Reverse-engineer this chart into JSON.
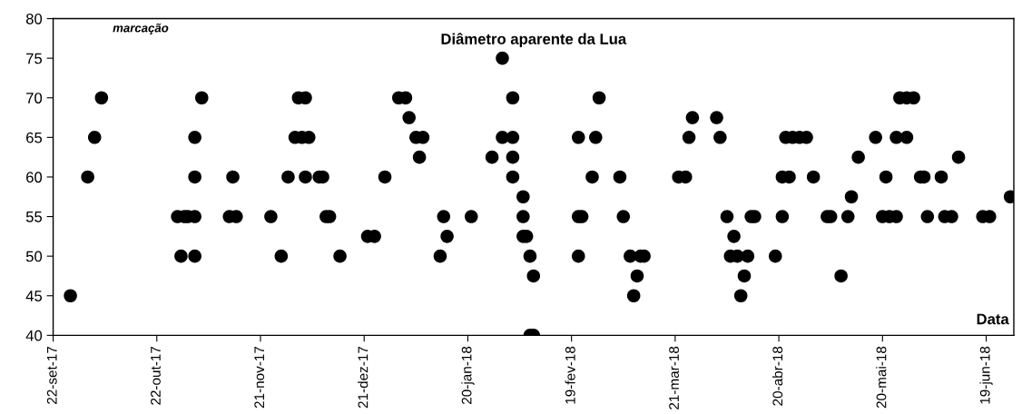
{
  "chart_data": {
    "type": "scatter",
    "title": "Diâmetro aparente da Lua",
    "xlabel": "Data",
    "ylabel": "marcação",
    "x": [
      "2017-09-27",
      "2017-10-02",
      "2017-10-04",
      "2017-10-06",
      "2017-10-28",
      "2017-10-29",
      "2017-10-30",
      "2017-10-31",
      "2017-11-02",
      "2017-11-02",
      "2017-11-02",
      "2017-11-02",
      "2017-11-04",
      "2017-11-12",
      "2017-11-13",
      "2017-11-14",
      "2017-11-24",
      "2017-11-27",
      "2017-11-29",
      "2017-12-01",
      "2017-12-02",
      "2017-12-03",
      "2017-12-04",
      "2017-12-04",
      "2017-12-05",
      "2017-12-08",
      "2017-12-09",
      "2017-12-10",
      "2017-12-11",
      "2017-12-14",
      "2017-12-22",
      "2017-12-24",
      "2017-12-27",
      "2017-12-31",
      "2018-01-02",
      "2018-01-03",
      "2018-01-05",
      "2018-01-06",
      "2018-01-07",
      "2018-01-12",
      "2018-01-13",
      "2018-01-14",
      "2018-01-21",
      "2018-01-27",
      "2018-01-30",
      "2018-01-30",
      "2018-02-02",
      "2018-02-02",
      "2018-02-02",
      "2018-02-02",
      "2018-02-05",
      "2018-02-05",
      "2018-02-05",
      "2018-02-06",
      "2018-02-07",
      "2018-02-08",
      "2018-02-07",
      "2018-02-08",
      "2018-02-21",
      "2018-02-22",
      "2018-02-21",
      "2018-02-21",
      "2018-02-25",
      "2018-02-26",
      "2018-02-27",
      "2018-03-05",
      "2018-03-06",
      "2018-03-08",
      "2018-03-10",
      "2018-03-09",
      "2018-03-11",
      "2018-03-12",
      "2018-03-22",
      "2018-03-24",
      "2018-03-25",
      "2018-03-26",
      "2018-04-02",
      "2018-04-03",
      "2018-04-05",
      "2018-04-07",
      "2018-04-06",
      "2018-04-08",
      "2018-04-11",
      "2018-04-09",
      "2018-04-10",
      "2018-04-12",
      "2018-04-13",
      "2018-04-19",
      "2018-04-21",
      "2018-04-21",
      "2018-04-23",
      "2018-04-22",
      "2018-04-24",
      "2018-04-26",
      "2018-04-28",
      "2018-04-30",
      "2018-05-04",
      "2018-05-05",
      "2018-05-08",
      "2018-05-10",
      "2018-05-11",
      "2018-05-13",
      "2018-05-18",
      "2018-05-20",
      "2018-05-22",
      "2018-05-24",
      "2018-05-21",
      "2018-05-24",
      "2018-05-27",
      "2018-05-25",
      "2018-05-27",
      "2018-05-29",
      "2018-05-31",
      "2018-06-01",
      "2018-06-02",
      "2018-06-06",
      "2018-06-07",
      "2018-06-09",
      "2018-06-11",
      "2018-06-18",
      "2018-06-20",
      "2018-06-26"
    ],
    "values": [
      45,
      60,
      65,
      70,
      55,
      50,
      55,
      55,
      55,
      50,
      60,
      65,
      70,
      55,
      60,
      55,
      55,
      50,
      60,
      65,
      70,
      65,
      70,
      60,
      65,
      60,
      60,
      55,
      55,
      50,
      52.5,
      52.5,
      60,
      70,
      70,
      67.5,
      65,
      62.5,
      65,
      50,
      55,
      52.5,
      55,
      62.5,
      75,
      65,
      70,
      65,
      62.5,
      60,
      57.5,
      55,
      52.5,
      52.5,
      50,
      47.5,
      40,
      40,
      55,
      55,
      50,
      65,
      60,
      65,
      70,
      60,
      55,
      50,
      47.5,
      45,
      50,
      50,
      60,
      60,
      65,
      67.5,
      67.5,
      65,
      55,
      52.5,
      50,
      50,
      50,
      45,
      47.5,
      55,
      55,
      50,
      55,
      60,
      60,
      65,
      65,
      65,
      65,
      60,
      55,
      55,
      47.5,
      55,
      57.5,
      62.5,
      65,
      55,
      55,
      55,
      60,
      65,
      65,
      70,
      70,
      70,
      60,
      60,
      55,
      60,
      55,
      55,
      62.5,
      55,
      55,
      57.5
    ],
    "color": "#000000",
    "marker": "circle",
    "xlim": [
      "2017-09-22",
      "2018-06-27"
    ],
    "xticks": [
      {
        "value": "2017-09-22",
        "label": "22-set-17"
      },
      {
        "value": "2017-10-22",
        "label": "22-out-17"
      },
      {
        "value": "2017-11-21",
        "label": "21-nov-17"
      },
      {
        "value": "2017-12-21",
        "label": "21-dez-17"
      },
      {
        "value": "2018-01-20",
        "label": "20-jan-18"
      },
      {
        "value": "2018-02-19",
        "label": "19-fev-18"
      },
      {
        "value": "2018-03-21",
        "label": "21-mar-18"
      },
      {
        "value": "2018-04-20",
        "label": "20-abr-18"
      },
      {
        "value": "2018-05-20",
        "label": "20-mai-18"
      },
      {
        "value": "2018-06-19",
        "label": "19-jun-18"
      }
    ],
    "ylim": [
      40,
      80
    ],
    "yticks": [
      40,
      45,
      50,
      55,
      60,
      65,
      70,
      75,
      80
    ],
    "grid": false,
    "legend": false
  }
}
